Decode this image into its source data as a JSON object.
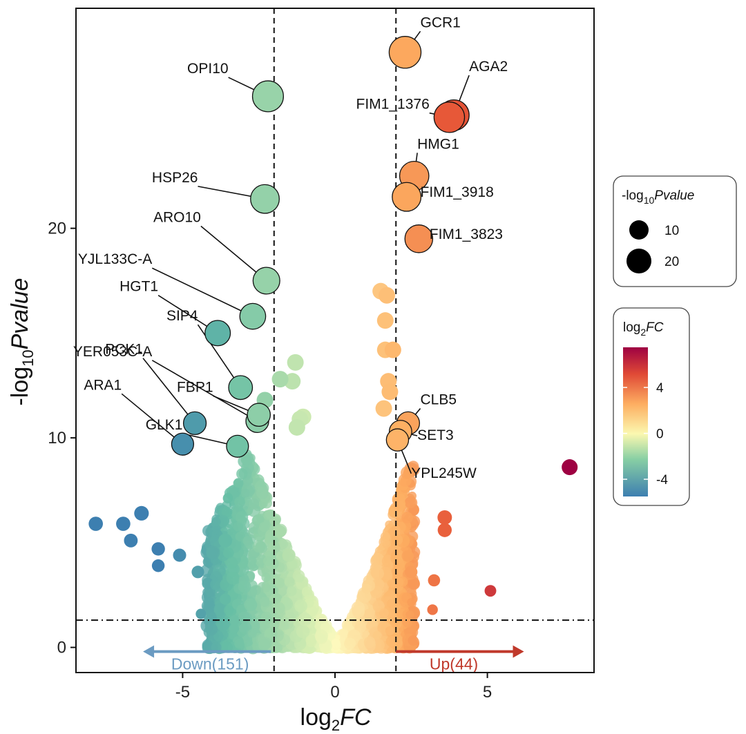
{
  "chart_data": {
    "type": "scatter",
    "subtype": "volcano",
    "title": "",
    "xlabel_base": "log",
    "xlabel_sub": "2",
    "xlabel_italic": "FC",
    "ylabel_base": "-log",
    "ylabel_sub": "10",
    "ylabel_italic": "Pvalue",
    "xlim": [
      -8.5,
      8.5
    ],
    "ylim": [
      -1.2,
      30.5
    ],
    "xticks": [
      -5,
      0,
      5
    ],
    "yticks": [
      0,
      10,
      20
    ],
    "thresholds": {
      "fc_low": -2,
      "fc_high": 2,
      "pvalue": 1.3
    },
    "labeled_genes": [
      {
        "name": "GCR1",
        "x": 2.3,
        "y": 28.4,
        "lx": 2.8,
        "ly": 29.6
      },
      {
        "name": "OPI10",
        "x": -2.2,
        "y": 26.3,
        "lx": -3.5,
        "ly": 27.4
      },
      {
        "name": "AGA2",
        "x": 3.9,
        "y": 25.4,
        "lx": 4.4,
        "ly": 27.5
      },
      {
        "name": "FIM1_1376",
        "x": 3.75,
        "y": 25.3,
        "lx": 3.1,
        "ly": 25.7
      },
      {
        "name": "HMG1",
        "x": 2.6,
        "y": 22.5,
        "lx": 2.7,
        "ly": 23.8
      },
      {
        "name": "HSP26",
        "x": -2.3,
        "y": 21.4,
        "lx": -4.5,
        "ly": 22.2
      },
      {
        "name": "FIM1_3918",
        "x": 2.35,
        "y": 21.5,
        "lx": 2.8,
        "ly": 21.5
      },
      {
        "name": "ARO10",
        "x": -2.25,
        "y": 17.5,
        "lx": -4.4,
        "ly": 20.3
      },
      {
        "name": "FIM1_3823",
        "x": 2.75,
        "y": 19.5,
        "lx": 3.1,
        "ly": 19.5
      },
      {
        "name": "YJL133C-A",
        "x": -2.7,
        "y": 15.8,
        "lx": -6.0,
        "ly": 18.3
      },
      {
        "name": "HGT1",
        "x": -3.85,
        "y": 15.0,
        "lx": -5.8,
        "ly": 17.0
      },
      {
        "name": "SIP4",
        "x": -3.1,
        "y": 12.4,
        "lx": -4.5,
        "ly": 15.6
      },
      {
        "name": "PCK1",
        "x": -4.6,
        "y": 10.7,
        "lx": -6.3,
        "ly": 14.0
      },
      {
        "name": "YER053C-A",
        "x": -2.55,
        "y": 10.8,
        "lx": -6.0,
        "ly": 13.9
      },
      {
        "name": "FBP1",
        "x": -2.5,
        "y": 11.1,
        "lx": -4.0,
        "ly": 12.2
      },
      {
        "name": "ARA1",
        "x": -5.0,
        "y": 9.7,
        "lx": -7.0,
        "ly": 12.3
      },
      {
        "name": "GLK1",
        "x": -3.2,
        "y": 9.6,
        "lx": -5.0,
        "ly": 10.4
      },
      {
        "name": "CLB5",
        "x": 2.4,
        "y": 10.7,
        "lx": 2.8,
        "ly": 11.6
      },
      {
        "name": "SET3",
        "x": 2.15,
        "y": 10.3,
        "lx": 2.7,
        "ly": 9.9
      },
      {
        "name": "YPL245W",
        "x": 2.05,
        "y": 9.9,
        "lx": 2.5,
        "ly": 8.1
      }
    ],
    "other_points": [
      {
        "x": -7.85,
        "y": 5.9
      },
      {
        "x": -6.95,
        "y": 5.9
      },
      {
        "x": -6.35,
        "y": 6.4
      },
      {
        "x": -6.7,
        "y": 5.1
      },
      {
        "x": -5.8,
        "y": 4.7
      },
      {
        "x": -5.8,
        "y": 3.9
      },
      {
        "x": -5.1,
        "y": 4.4
      },
      {
        "x": -4.5,
        "y": 3.6
      },
      {
        "x": -3.6,
        "y": 5.1
      },
      {
        "x": -3.6,
        "y": 2.3
      },
      {
        "x": -4.4,
        "y": 1.6
      },
      {
        "x": -3.3,
        "y": 1.3
      },
      {
        "x": -3.3,
        "y": 0.9
      },
      {
        "x": 7.7,
        "y": 8.6
      },
      {
        "x": 5.1,
        "y": 2.7
      },
      {
        "x": 3.6,
        "y": 5.6
      },
      {
        "x": 3.6,
        "y": 6.2
      },
      {
        "x": 3.25,
        "y": 3.2
      },
      {
        "x": 3.2,
        "y": 1.8
      },
      {
        "x": 2.5,
        "y": 3.6
      },
      {
        "x": 1.8,
        "y": 0.8
      },
      {
        "x": -1.3,
        "y": 13.6
      },
      {
        "x": -1.4,
        "y": 12.7
      },
      {
        "x": -1.05,
        "y": 11.0
      },
      {
        "x": -1.15,
        "y": 10.9
      },
      {
        "x": -1.25,
        "y": 10.5
      },
      {
        "x": -1.8,
        "y": 12.8
      },
      {
        "x": -2.3,
        "y": 11.8
      },
      {
        "x": 1.5,
        "y": 17.0
      },
      {
        "x": 1.7,
        "y": 16.8
      },
      {
        "x": 1.65,
        "y": 15.6
      },
      {
        "x": 1.65,
        "y": 14.2
      },
      {
        "x": 1.9,
        "y": 14.2
      },
      {
        "x": 1.75,
        "y": 12.7
      },
      {
        "x": 1.8,
        "y": 12.2
      },
      {
        "x": 1.6,
        "y": 11.4
      }
    ],
    "bulk_points_note": "thousands of non-significant points (rendered programmatically)",
    "legends": {
      "size": {
        "title_base": "-log",
        "title_sub": "10",
        "title_italic": "Pvalue",
        "entries": [
          {
            "label": "10",
            "value": 10
          },
          {
            "label": "20",
            "value": 20
          }
        ]
      },
      "color": {
        "title_base": "log",
        "title_sub": "2",
        "title_italic": "FC",
        "ticks": [
          {
            "label": "4",
            "value": 4
          },
          {
            "label": "0",
            "value": 0
          },
          {
            "label": "-4",
            "value": -4
          }
        ],
        "range": [
          -5.5,
          7.5
        ]
      }
    },
    "annotations": {
      "down": {
        "text": "Down(151)",
        "color": "#6b9bc2"
      },
      "up": {
        "text": "Up(44)",
        "color": "#c0392b"
      }
    }
  }
}
